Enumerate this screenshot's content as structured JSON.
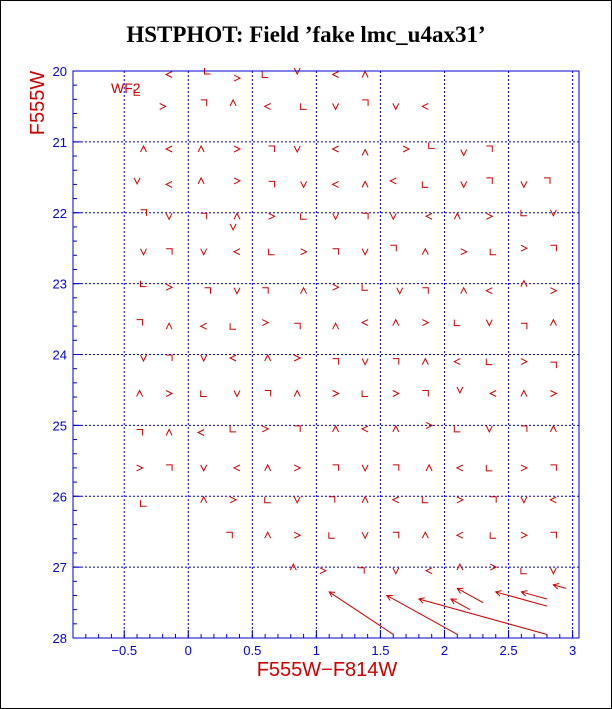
{
  "title": "HSTPHOT: Field ’fake lmc_u4ax31’",
  "chart_data": {
    "type": "scatter",
    "title": "HSTPHOT: Field ’fake lmc_u4ax31’",
    "xlabel": "F555W−F814W",
    "ylabel": "F555W",
    "panel_label": "WF2",
    "xlim": [
      -0.9,
      3.05
    ],
    "ylim": [
      28,
      20
    ],
    "y_inverted": true,
    "xticks": [
      -0.5,
      0,
      0.5,
      1,
      1.5,
      2,
      2.5,
      3
    ],
    "xtick_labels": [
      "−0.5",
      "0",
      "0.5",
      "1",
      "1.5",
      "2",
      "2.5",
      "3"
    ],
    "yticks": [
      20,
      21,
      22,
      23,
      24,
      25,
      26,
      27,
      28
    ],
    "ytick_labels": [
      "20",
      "21",
      "22",
      "23",
      "24",
      "25",
      "26",
      "27",
      "28"
    ],
    "grid": true,
    "colors": {
      "axes": "#0000cc",
      "grid": "#0000cc",
      "markers": "#cc0000",
      "labels": "#cc0000",
      "title": "#000000"
    },
    "marker": "chevron",
    "points": [
      [
        -0.35,
        20.05
      ],
      [
        -0.15,
        20.05
      ],
      [
        0.15,
        20.0
      ],
      [
        0.38,
        20.1
      ],
      [
        0.6,
        20.05
      ],
      [
        0.85,
        20.0
      ],
      [
        1.15,
        20.05
      ],
      [
        1.38,
        20.05
      ],
      [
        -0.4,
        20.3
      ],
      [
        -0.2,
        20.5
      ],
      [
        0.12,
        20.45
      ],
      [
        0.35,
        20.45
      ],
      [
        0.62,
        20.5
      ],
      [
        0.9,
        20.5
      ],
      [
        1.15,
        20.5
      ],
      [
        1.38,
        20.45
      ],
      [
        1.62,
        20.5
      ],
      [
        1.85,
        20.5
      ],
      [
        -0.35,
        21.1
      ],
      [
        -0.15,
        21.1
      ],
      [
        0.1,
        21.1
      ],
      [
        0.38,
        21.1
      ],
      [
        0.65,
        21.1
      ],
      [
        0.85,
        21.1
      ],
      [
        1.15,
        21.1
      ],
      [
        1.38,
        21.15
      ],
      [
        1.7,
        21.1
      ],
      [
        1.9,
        21.05
      ],
      [
        2.15,
        21.15
      ],
      [
        2.35,
        21.1
      ],
      [
        -0.4,
        21.55
      ],
      [
        -0.15,
        21.6
      ],
      [
        0.1,
        21.55
      ],
      [
        0.38,
        21.55
      ],
      [
        0.65,
        21.6
      ],
      [
        0.9,
        21.6
      ],
      [
        1.15,
        21.6
      ],
      [
        1.38,
        21.6
      ],
      [
        1.6,
        21.55
      ],
      [
        1.85,
        21.6
      ],
      [
        2.15,
        21.6
      ],
      [
        2.35,
        21.55
      ],
      [
        2.62,
        21.6
      ],
      [
        2.8,
        21.55
      ],
      [
        -0.35,
        22.0
      ],
      [
        -0.15,
        22.05
      ],
      [
        0.12,
        22.05
      ],
      [
        0.38,
        22.05
      ],
      [
        0.65,
        22.05
      ],
      [
        0.9,
        22.05
      ],
      [
        1.15,
        22.05
      ],
      [
        1.38,
        22.05
      ],
      [
        1.6,
        22.05
      ],
      [
        1.88,
        22.05
      ],
      [
        2.1,
        22.05
      ],
      [
        2.35,
        22.05
      ],
      [
        2.62,
        22.0
      ],
      [
        2.85,
        22.0
      ],
      [
        0.35,
        22.2
      ],
      [
        -0.35,
        22.55
      ],
      [
        -0.15,
        22.55
      ],
      [
        0.12,
        22.55
      ],
      [
        0.38,
        22.55
      ],
      [
        0.65,
        22.55
      ],
      [
        0.9,
        22.55
      ],
      [
        1.15,
        22.55
      ],
      [
        1.38,
        22.55
      ],
      [
        1.6,
        22.5
      ],
      [
        1.85,
        22.55
      ],
      [
        2.15,
        22.55
      ],
      [
        2.38,
        22.55
      ],
      [
        2.62,
        22.5
      ],
      [
        2.85,
        22.5
      ],
      [
        -0.35,
        23.0
      ],
      [
        -0.15,
        23.05
      ],
      [
        0.15,
        23.1
      ],
      [
        0.38,
        23.1
      ],
      [
        0.6,
        23.1
      ],
      [
        0.9,
        23.1
      ],
      [
        1.15,
        23.05
      ],
      [
        1.38,
        23.05
      ],
      [
        1.65,
        23.1
      ],
      [
        1.85,
        23.1
      ],
      [
        2.15,
        23.1
      ],
      [
        2.35,
        23.1
      ],
      [
        2.62,
        23.0
      ],
      [
        2.85,
        23.1
      ],
      [
        -0.38,
        23.55
      ],
      [
        -0.15,
        23.6
      ],
      [
        0.12,
        23.6
      ],
      [
        0.35,
        23.6
      ],
      [
        0.6,
        23.55
      ],
      [
        0.85,
        23.6
      ],
      [
        1.15,
        23.6
      ],
      [
        1.38,
        23.55
      ],
      [
        1.62,
        23.55
      ],
      [
        1.85,
        23.55
      ],
      [
        2.1,
        23.55
      ],
      [
        2.35,
        23.55
      ],
      [
        2.62,
        23.6
      ],
      [
        2.85,
        23.55
      ],
      [
        -0.35,
        24.05
      ],
      [
        -0.15,
        24.05
      ],
      [
        0.12,
        24.05
      ],
      [
        0.35,
        24.05
      ],
      [
        0.62,
        24.05
      ],
      [
        0.85,
        24.05
      ],
      [
        1.15,
        24.1
      ],
      [
        1.38,
        24.1
      ],
      [
        1.62,
        24.1
      ],
      [
        1.85,
        24.1
      ],
      [
        2.1,
        24.1
      ],
      [
        2.35,
        24.1
      ],
      [
        2.62,
        24.1
      ],
      [
        2.85,
        24.15
      ],
      [
        -0.38,
        24.55
      ],
      [
        -0.15,
        24.55
      ],
      [
        0.12,
        24.55
      ],
      [
        0.38,
        24.55
      ],
      [
        0.62,
        24.55
      ],
      [
        0.85,
        24.55
      ],
      [
        1.15,
        24.55
      ],
      [
        1.38,
        24.55
      ],
      [
        1.62,
        24.55
      ],
      [
        1.85,
        24.55
      ],
      [
        2.12,
        24.5
      ],
      [
        2.38,
        24.55
      ],
      [
        2.62,
        24.55
      ],
      [
        2.85,
        24.55
      ],
      [
        -0.38,
        25.1
      ],
      [
        -0.15,
        25.1
      ],
      [
        0.1,
        25.1
      ],
      [
        0.35,
        25.05
      ],
      [
        0.6,
        25.05
      ],
      [
        0.85,
        25.05
      ],
      [
        1.15,
        25.05
      ],
      [
        1.38,
        25.05
      ],
      [
        1.62,
        25.05
      ],
      [
        1.88,
        25.0
      ],
      [
        2.1,
        25.05
      ],
      [
        2.35,
        25.05
      ],
      [
        2.62,
        25.05
      ],
      [
        2.85,
        25.05
      ],
      [
        -0.38,
        25.6
      ],
      [
        -0.15,
        25.6
      ],
      [
        0.12,
        25.6
      ],
      [
        0.38,
        25.6
      ],
      [
        0.62,
        25.6
      ],
      [
        0.85,
        25.6
      ],
      [
        1.15,
        25.6
      ],
      [
        1.38,
        25.6
      ],
      [
        1.62,
        25.6
      ],
      [
        1.88,
        25.6
      ],
      [
        2.12,
        25.6
      ],
      [
        2.35,
        25.6
      ],
      [
        2.62,
        25.6
      ],
      [
        2.85,
        25.6
      ],
      [
        -0.35,
        26.1
      ],
      [
        0.12,
        26.05
      ],
      [
        0.35,
        26.05
      ],
      [
        0.62,
        26.05
      ],
      [
        0.85,
        26.05
      ],
      [
        1.12,
        26.05
      ],
      [
        1.38,
        26.05
      ],
      [
        1.62,
        26.05
      ],
      [
        1.85,
        26.05
      ],
      [
        2.12,
        26.05
      ],
      [
        2.38,
        26.05
      ],
      [
        2.62,
        26.05
      ],
      [
        2.85,
        26.05
      ],
      [
        0.32,
        26.55
      ],
      [
        0.62,
        26.55
      ],
      [
        0.85,
        26.55
      ],
      [
        1.12,
        26.55
      ],
      [
        1.38,
        26.55
      ],
      [
        1.62,
        26.55
      ],
      [
        1.85,
        26.55
      ],
      [
        2.12,
        26.55
      ],
      [
        2.38,
        26.55
      ],
      [
        2.62,
        26.55
      ],
      [
        2.85,
        26.55
      ],
      [
        0.82,
        27.0
      ],
      [
        1.05,
        27.05
      ],
      [
        1.35,
        27.05
      ],
      [
        1.62,
        27.05
      ],
      [
        1.88,
        27.05
      ],
      [
        2.12,
        27.0
      ],
      [
        2.38,
        27.0
      ],
      [
        2.62,
        27.05
      ],
      [
        2.85,
        27.05
      ]
    ],
    "vectors": [
      [
        1.1,
        27.35,
        1.6,
        27.95
      ],
      [
        1.55,
        27.4,
        2.1,
        27.95
      ],
      [
        1.8,
        27.45,
        2.8,
        27.95
      ],
      [
        2.05,
        27.45,
        2.2,
        27.6
      ],
      [
        2.1,
        27.3,
        2.3,
        27.5
      ],
      [
        2.4,
        27.35,
        2.8,
        27.55
      ],
      [
        2.6,
        27.35,
        2.8,
        27.45
      ],
      [
        2.85,
        27.25,
        2.95,
        27.3
      ]
    ]
  }
}
